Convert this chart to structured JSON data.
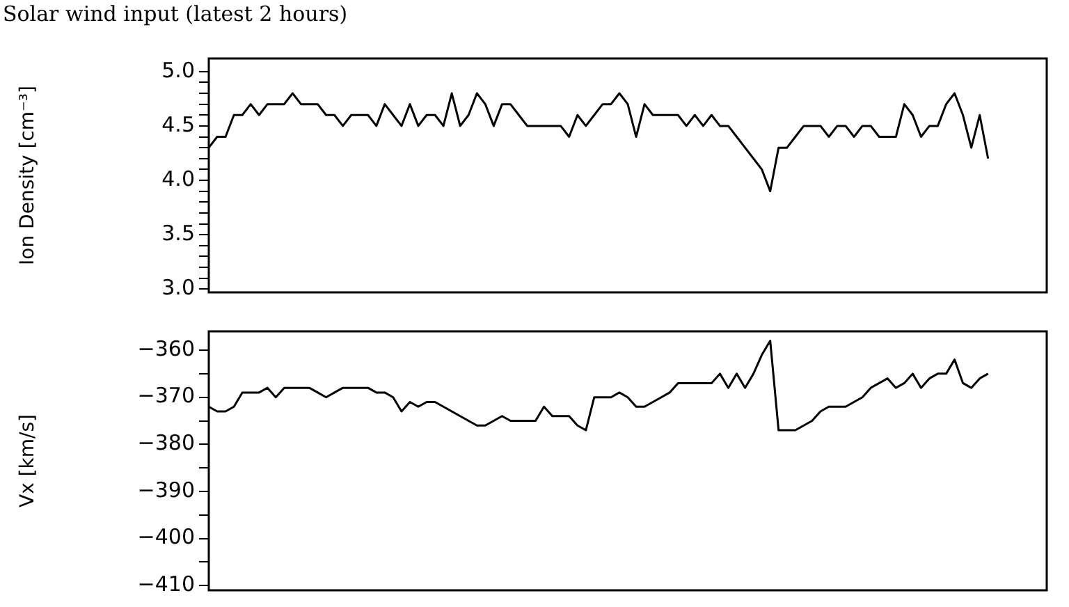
{
  "chart_data": [
    {
      "type": "line",
      "title": "Solar wind input (latest 2 hours)",
      "ylabel": "Ion Density [cm⁻³]",
      "tick_labels": "y",
      "categories": [
        null,
        null,
        null,
        null,
        null,
        null,
        null,
        null,
        null,
        null,
        null,
        null,
        null,
        null,
        null,
        null,
        null,
        null,
        null,
        null,
        null,
        null,
        null,
        null,
        null,
        null,
        null,
        null,
        null,
        null,
        null,
        null,
        null,
        null,
        null,
        null,
        null,
        null,
        null,
        null,
        null,
        null,
        null,
        null,
        null,
        null,
        null,
        null,
        null,
        null,
        null,
        null,
        null,
        null,
        null,
        null,
        null,
        null,
        null,
        null,
        null,
        null,
        null,
        null,
        null,
        null,
        null,
        null,
        null,
        null,
        null,
        null,
        null,
        null,
        null,
        null,
        null,
        null,
        null,
        null,
        null,
        null,
        null,
        null,
        null,
        null,
        null,
        null,
        null,
        null,
        null,
        null,
        null,
        null,
        null,
        null,
        null,
        null,
        null,
        null,
        null
      ],
      "series": [
        {
          "color": "#000000",
          "values": [
            4.3,
            4.4,
            4.4,
            4.6,
            4.6,
            4.7,
            4.6,
            4.7,
            4.7,
            4.7,
            4.8,
            4.7,
            4.7,
            4.7,
            4.6,
            4.6,
            4.5,
            4.6,
            4.6,
            4.6,
            4.5,
            4.7,
            4.6,
            4.5,
            4.7,
            4.5,
            4.6,
            4.6,
            4.5,
            4.8,
            4.5,
            4.6,
            4.8,
            4.7,
            4.5,
            4.7,
            4.7,
            4.6,
            4.5,
            4.5,
            4.5,
            4.5,
            4.5,
            4.4,
            4.6,
            4.5,
            4.6,
            4.7,
            4.7,
            4.8,
            4.7,
            4.4,
            4.7,
            4.6,
            4.6,
            4.6,
            4.6,
            4.5,
            4.6,
            4.5,
            4.6,
            4.5,
            4.5,
            4.4,
            4.3,
            4.2,
            4.1,
            3.9,
            4.3,
            4.3,
            4.4,
            4.5,
            4.5,
            4.5,
            4.4,
            4.5,
            4.5,
            4.4,
            4.5,
            4.5,
            4.4,
            4.4,
            4.4,
            4.7,
            4.6,
            4.4,
            4.5,
            4.5,
            4.7,
            4.8,
            4.6,
            4.3,
            4.6,
            4.2,
            null,
            null,
            null,
            null,
            null,
            null,
            null
          ]
        }
      ],
      "ylim": [
        2.97,
        5.12
      ],
      "yticks": [
        {
          "value": 3,
          "label": "3.0"
        },
        {
          "value": 3.1,
          "label": null
        },
        {
          "value": 3.2,
          "label": null
        },
        {
          "value": 3.3,
          "label": null
        },
        {
          "value": 3.4,
          "label": null
        },
        3.5,
        {
          "value": 3.6,
          "label": null
        },
        {
          "value": 3.7,
          "label": null
        },
        {
          "value": 3.8,
          "label": null
        },
        {
          "value": 3.9,
          "label": null
        },
        {
          "value": 4,
          "label": "4.0"
        },
        {
          "value": 4.1,
          "label": null
        },
        {
          "value": 4.2,
          "label": null
        },
        {
          "value": 4.3,
          "label": null
        },
        {
          "value": 4.4,
          "label": null
        },
        4.5,
        {
          "value": 4.6,
          "label": null
        },
        {
          "value": 4.7,
          "label": null
        },
        {
          "value": 4.8,
          "label": null
        },
        {
          "value": 4.9,
          "label": null
        },
        {
          "value": 5,
          "label": "5.0"
        }
      ]
    },
    {
      "type": "line",
      "ylabel": "Vx [km/s]",
      "tick_labels": "y",
      "categories": [
        null,
        null,
        null,
        null,
        null,
        null,
        null,
        null,
        null,
        null,
        null,
        null,
        null,
        null,
        null,
        null,
        null,
        null,
        null,
        null,
        null,
        null,
        null,
        null,
        null,
        null,
        null,
        null,
        null,
        null,
        null,
        null,
        null,
        null,
        null,
        null,
        null,
        null,
        null,
        null,
        null,
        null,
        null,
        null,
        null,
        null,
        null,
        null,
        null,
        null,
        null,
        null,
        null,
        null,
        null,
        null,
        null,
        null,
        null,
        null,
        null,
        null,
        null,
        null,
        null,
        null,
        null,
        null,
        null,
        null,
        null,
        null,
        null,
        null,
        null,
        null,
        null,
        null,
        null,
        null,
        null,
        null,
        null,
        null,
        null,
        null,
        null,
        null,
        null,
        null,
        null,
        null,
        null,
        null,
        null,
        null,
        null,
        null,
        null,
        null,
        null
      ],
      "series": [
        {
          "color": "#000000",
          "values": [
            -372,
            -373,
            -373,
            -372,
            -369,
            -369,
            -369,
            -368,
            -370,
            -368,
            -368,
            -368,
            -368,
            -369,
            -370,
            -369,
            -368,
            -368,
            -368,
            -368,
            -369,
            -369,
            -370,
            -373,
            -371,
            -372,
            -371,
            -371,
            -372,
            -373,
            -374,
            -375,
            -376,
            -376,
            -375,
            -374,
            -375,
            -375,
            -375,
            -375,
            -372,
            -374,
            -374,
            -374,
            -376,
            -377,
            -370,
            -370,
            -370,
            -369,
            -370,
            -372,
            -372,
            -371,
            -370,
            -369,
            -367,
            -367,
            -367,
            -367,
            -367,
            -365,
            -368,
            -365,
            -368,
            -365,
            -361,
            -358,
            -377,
            -377,
            -377,
            -376,
            -375,
            -373,
            -372,
            -372,
            -372,
            -371,
            -370,
            -368,
            -367,
            -366,
            -368,
            -367,
            -365,
            -368,
            -366,
            -365,
            -365,
            -362,
            -367,
            -368,
            -366,
            -365,
            null,
            null,
            null,
            null,
            null,
            null,
            null
          ]
        }
      ],
      "ylim": [
        -411,
        -356
      ],
      "yticks": [
        {
          "value": -410,
          "label": "−410"
        },
        {
          "value": -405,
          "label": null
        },
        {
          "value": -400,
          "label": "−400"
        },
        {
          "value": -395,
          "label": null
        },
        {
          "value": -390,
          "label": "−390"
        },
        {
          "value": -385,
          "label": null
        },
        {
          "value": -380,
          "label": "−380"
        },
        {
          "value": -375,
          "label": null
        },
        {
          "value": -370,
          "label": "−370"
        },
        {
          "value": -365,
          "label": null
        },
        {
          "value": -360,
          "label": "−360"
        }
      ]
    }
  ]
}
